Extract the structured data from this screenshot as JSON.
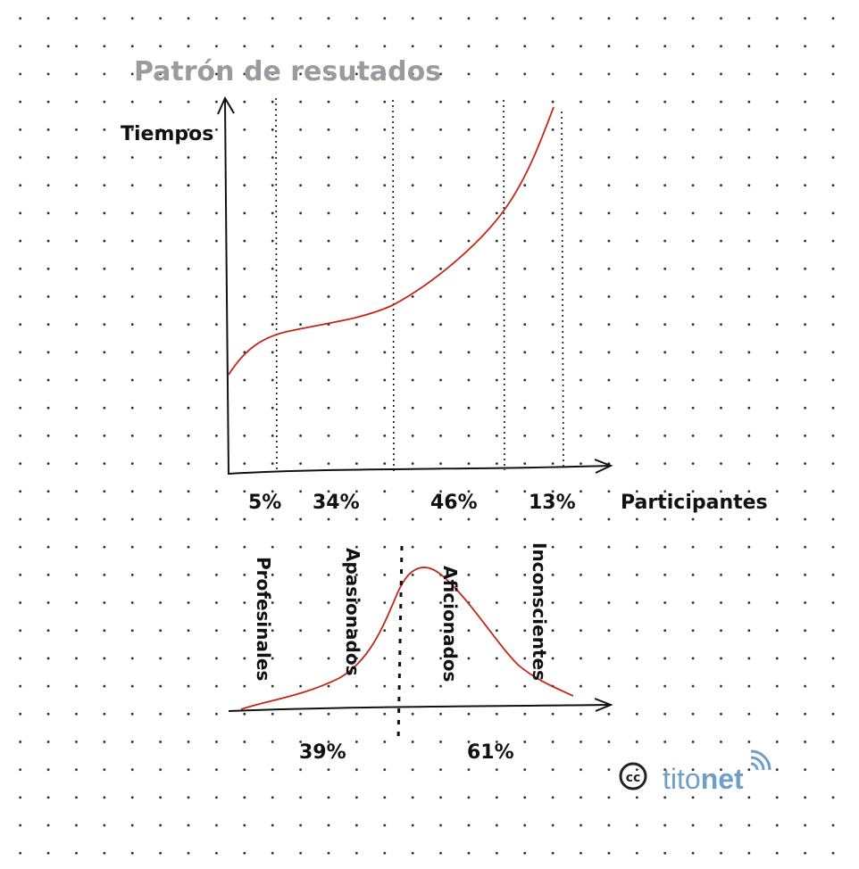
{
  "title": "Patrón de resutados",
  "top_chart": {
    "y_axis_label": "Tiempos",
    "x_axis_label": "Participantes",
    "segments": [
      "5%",
      "34%",
      "46%",
      "13%"
    ]
  },
  "bottom_chart": {
    "categories": [
      "Profesinales",
      "Apasionados",
      "Aficionados",
      "Inconscientes"
    ],
    "split_labels": [
      "39%",
      "61%"
    ]
  },
  "logo": {
    "cc": "cc",
    "brand_part1": "tito",
    "brand_part2": "net"
  },
  "colors": {
    "curve": "#c0281c",
    "title": "#9a9a9f",
    "logo_blue": "#6f9fc8"
  }
}
